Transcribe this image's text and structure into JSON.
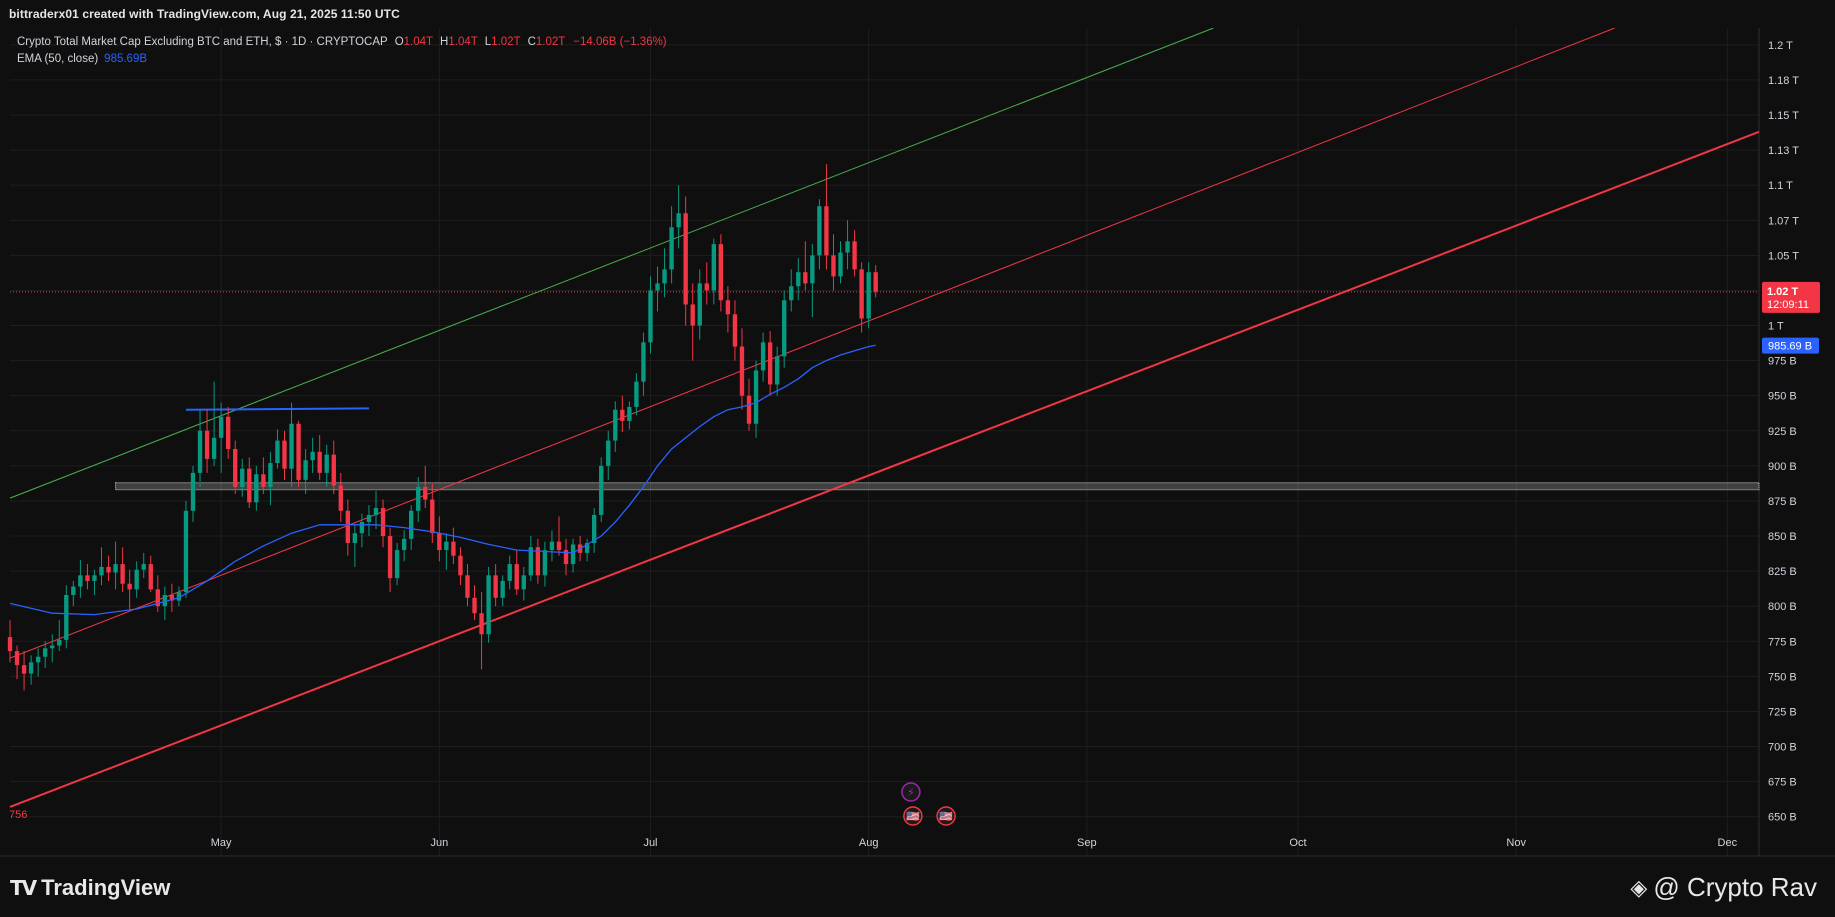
{
  "header": {
    "creator_text": "bittraderx01 created with TradingView.com, Aug 21, 2025 11:50 UTC"
  },
  "legend": {
    "symbol_text": "Crypto Total Market Cap Excluding BTC and ETH, $ · 1D · CRYPTOCAP",
    "open_label": "O",
    "open_value": "1.04T",
    "high_label": "H",
    "high_value": "1.04T",
    "low_label": "L",
    "low_value": "1.02T",
    "close_label": "C",
    "close_value": "1.02T",
    "change_value": "−14.06B (−1.36%)",
    "ema_label": "EMA (50, close)",
    "ema_value": "985.69B"
  },
  "footer": {
    "logo_text": "TradingView",
    "watermark_text": "@ Crypto Rav"
  },
  "colors": {
    "background": "#0f0f0f",
    "up": "#089981",
    "down": "#f23645",
    "ema": "#2962ff",
    "channel_top": "#4caf50",
    "channel_mid": "#f23645",
    "channel_low": "#f23645",
    "resistance": "#2962ff",
    "grid": "#1e1e1e"
  },
  "chart_data": {
    "type": "candlestick",
    "title": "Crypto Total Market Cap Excluding BTC and ETH, $ · 1D · CRYPTOCAP",
    "price_unit": "USD",
    "y_ticks": [
      "650 B",
      "675 B",
      "700 B",
      "725 B",
      "750 B",
      "775 B",
      "800 B",
      "825 B",
      "850 B",
      "875 B",
      "900 B",
      "925 B",
      "950 B",
      "975 B",
      "1 T",
      "1.02 T",
      "1.05 T",
      "1.07 T",
      "1.1 T",
      "1.13 T",
      "1.15 T",
      "1.18 T",
      "1.2 T"
    ],
    "y_tick_values": [
      650,
      675,
      700,
      725,
      750,
      775,
      800,
      825,
      850,
      875,
      900,
      925,
      950,
      975,
      1000,
      1025,
      1050,
      1075,
      1100,
      1125,
      1150,
      1175,
      1200
    ],
    "ylim_billions": [
      622,
      1212
    ],
    "x_ticks": [
      {
        "label": "May",
        "day": 30
      },
      {
        "label": "Jun",
        "day": 61
      },
      {
        "label": "Jul",
        "day": 91
      },
      {
        "label": "Aug",
        "day": 122
      },
      {
        "label": "Sep",
        "day": 153
      },
      {
        "label": "Oct",
        "day": 183
      },
      {
        "label": "Nov",
        "day": 214
      },
      {
        "label": "Dec",
        "day": 244
      }
    ],
    "xlim_days": [
      0,
      248.5
    ],
    "last_price_label": "1.02 T",
    "last_price_value": 1024,
    "countdown_label": "12:09:11",
    "ema_badge_label": "985.69 B",
    "ema_badge_value": 985.69,
    "left_low_label": "756",
    "candles": [
      {
        "day": 0,
        "o": 778,
        "h": 790,
        "l": 760,
        "c": 768
      },
      {
        "day": 1,
        "o": 768,
        "h": 772,
        "l": 748,
        "c": 758
      },
      {
        "day": 2,
        "o": 758,
        "h": 768,
        "l": 740,
        "c": 752
      },
      {
        "day": 3,
        "o": 752,
        "h": 765,
        "l": 744,
        "c": 760
      },
      {
        "day": 4,
        "o": 760,
        "h": 770,
        "l": 750,
        "c": 764
      },
      {
        "day": 5,
        "o": 764,
        "h": 775,
        "l": 756,
        "c": 770
      },
      {
        "day": 6,
        "o": 770,
        "h": 780,
        "l": 760,
        "c": 772
      },
      {
        "day": 7,
        "o": 772,
        "h": 790,
        "l": 768,
        "c": 776
      },
      {
        "day": 8,
        "o": 776,
        "h": 815,
        "l": 770,
        "c": 808
      },
      {
        "day": 9,
        "o": 808,
        "h": 818,
        "l": 800,
        "c": 814
      },
      {
        "day": 10,
        "o": 814,
        "h": 833,
        "l": 806,
        "c": 822
      },
      {
        "day": 11,
        "o": 822,
        "h": 830,
        "l": 812,
        "c": 818
      },
      {
        "day": 12,
        "o": 818,
        "h": 826,
        "l": 808,
        "c": 822
      },
      {
        "day": 13,
        "o": 822,
        "h": 842,
        "l": 815,
        "c": 828
      },
      {
        "day": 14,
        "o": 828,
        "h": 836,
        "l": 818,
        "c": 824
      },
      {
        "day": 15,
        "o": 824,
        "h": 846,
        "l": 812,
        "c": 830
      },
      {
        "day": 16,
        "o": 830,
        "h": 842,
        "l": 810,
        "c": 816
      },
      {
        "day": 17,
        "o": 816,
        "h": 826,
        "l": 798,
        "c": 812
      },
      {
        "day": 18,
        "o": 812,
        "h": 832,
        "l": 806,
        "c": 826
      },
      {
        "day": 19,
        "o": 826,
        "h": 838,
        "l": 820,
        "c": 830
      },
      {
        "day": 20,
        "o": 830,
        "h": 836,
        "l": 810,
        "c": 812
      },
      {
        "day": 21,
        "o": 812,
        "h": 822,
        "l": 796,
        "c": 800
      },
      {
        "day": 22,
        "o": 800,
        "h": 814,
        "l": 790,
        "c": 808
      },
      {
        "day": 23,
        "o": 808,
        "h": 816,
        "l": 796,
        "c": 804
      },
      {
        "day": 24,
        "o": 804,
        "h": 814,
        "l": 800,
        "c": 810
      },
      {
        "day": 25,
        "o": 810,
        "h": 875,
        "l": 806,
        "c": 868
      },
      {
        "day": 26,
        "o": 868,
        "h": 900,
        "l": 860,
        "c": 895
      },
      {
        "day": 27,
        "o": 895,
        "h": 940,
        "l": 885,
        "c": 925
      },
      {
        "day": 28,
        "o": 925,
        "h": 940,
        "l": 895,
        "c": 905
      },
      {
        "day": 29,
        "o": 905,
        "h": 960,
        "l": 900,
        "c": 920
      },
      {
        "day": 30,
        "o": 920,
        "h": 945,
        "l": 895,
        "c": 935
      },
      {
        "day": 31,
        "o": 935,
        "h": 942,
        "l": 905,
        "c": 912
      },
      {
        "day": 32,
        "o": 912,
        "h": 918,
        "l": 880,
        "c": 885
      },
      {
        "day": 33,
        "o": 885,
        "h": 905,
        "l": 878,
        "c": 898
      },
      {
        "day": 34,
        "o": 898,
        "h": 906,
        "l": 870,
        "c": 874
      },
      {
        "day": 35,
        "o": 874,
        "h": 900,
        "l": 868,
        "c": 894
      },
      {
        "day": 36,
        "o": 894,
        "h": 906,
        "l": 880,
        "c": 885
      },
      {
        "day": 37,
        "o": 885,
        "h": 910,
        "l": 872,
        "c": 902
      },
      {
        "day": 38,
        "o": 902,
        "h": 926,
        "l": 898,
        "c": 918
      },
      {
        "day": 39,
        "o": 918,
        "h": 925,
        "l": 890,
        "c": 898
      },
      {
        "day": 40,
        "o": 898,
        "h": 945,
        "l": 885,
        "c": 930
      },
      {
        "day": 41,
        "o": 930,
        "h": 932,
        "l": 885,
        "c": 890
      },
      {
        "day": 42,
        "o": 890,
        "h": 912,
        "l": 880,
        "c": 904
      },
      {
        "day": 43,
        "o": 904,
        "h": 920,
        "l": 895,
        "c": 910
      },
      {
        "day": 44,
        "o": 910,
        "h": 922,
        "l": 890,
        "c": 895
      },
      {
        "day": 45,
        "o": 895,
        "h": 915,
        "l": 885,
        "c": 908
      },
      {
        "day": 46,
        "o": 908,
        "h": 918,
        "l": 880,
        "c": 886
      },
      {
        "day": 47,
        "o": 886,
        "h": 895,
        "l": 860,
        "c": 868
      },
      {
        "day": 48,
        "o": 868,
        "h": 876,
        "l": 836,
        "c": 845
      },
      {
        "day": 49,
        "o": 845,
        "h": 858,
        "l": 828,
        "c": 852
      },
      {
        "day": 50,
        "o": 852,
        "h": 866,
        "l": 842,
        "c": 860
      },
      {
        "day": 51,
        "o": 860,
        "h": 872,
        "l": 850,
        "c": 865
      },
      {
        "day": 52,
        "o": 865,
        "h": 882,
        "l": 855,
        "c": 870
      },
      {
        "day": 53,
        "o": 870,
        "h": 876,
        "l": 842,
        "c": 850
      },
      {
        "day": 54,
        "o": 850,
        "h": 856,
        "l": 810,
        "c": 820
      },
      {
        "day": 55,
        "o": 820,
        "h": 845,
        "l": 815,
        "c": 840
      },
      {
        "day": 56,
        "o": 840,
        "h": 854,
        "l": 832,
        "c": 848
      },
      {
        "day": 57,
        "o": 848,
        "h": 872,
        "l": 840,
        "c": 868
      },
      {
        "day": 58,
        "o": 868,
        "h": 892,
        "l": 860,
        "c": 885
      },
      {
        "day": 59,
        "o": 885,
        "h": 900,
        "l": 870,
        "c": 876
      },
      {
        "day": 60,
        "o": 876,
        "h": 888,
        "l": 845,
        "c": 852
      },
      {
        "day": 61,
        "o": 852,
        "h": 864,
        "l": 832,
        "c": 840
      },
      {
        "day": 62,
        "o": 840,
        "h": 852,
        "l": 826,
        "c": 846
      },
      {
        "day": 63,
        "o": 846,
        "h": 856,
        "l": 830,
        "c": 836
      },
      {
        "day": 64,
        "o": 836,
        "h": 842,
        "l": 815,
        "c": 822
      },
      {
        "day": 65,
        "o": 822,
        "h": 830,
        "l": 800,
        "c": 806
      },
      {
        "day": 66,
        "o": 806,
        "h": 815,
        "l": 790,
        "c": 795
      },
      {
        "day": 67,
        "o": 795,
        "h": 810,
        "l": 755,
        "c": 780
      },
      {
        "day": 68,
        "o": 780,
        "h": 828,
        "l": 774,
        "c": 822
      },
      {
        "day": 69,
        "o": 822,
        "h": 830,
        "l": 800,
        "c": 806
      },
      {
        "day": 70,
        "o": 806,
        "h": 822,
        "l": 800,
        "c": 818
      },
      {
        "day": 71,
        "o": 818,
        "h": 836,
        "l": 812,
        "c": 830
      },
      {
        "day": 72,
        "o": 830,
        "h": 840,
        "l": 808,
        "c": 812
      },
      {
        "day": 73,
        "o": 812,
        "h": 828,
        "l": 804,
        "c": 822
      },
      {
        "day": 74,
        "o": 822,
        "h": 850,
        "l": 818,
        "c": 842
      },
      {
        "day": 75,
        "o": 842,
        "h": 848,
        "l": 816,
        "c": 822
      },
      {
        "day": 76,
        "o": 822,
        "h": 846,
        "l": 814,
        "c": 840
      },
      {
        "day": 77,
        "o": 840,
        "h": 854,
        "l": 832,
        "c": 846
      },
      {
        "day": 78,
        "o": 846,
        "h": 864,
        "l": 836,
        "c": 840
      },
      {
        "day": 79,
        "o": 840,
        "h": 848,
        "l": 822,
        "c": 830
      },
      {
        "day": 80,
        "o": 830,
        "h": 848,
        "l": 824,
        "c": 844
      },
      {
        "day": 81,
        "o": 844,
        "h": 850,
        "l": 832,
        "c": 838
      },
      {
        "day": 82,
        "o": 838,
        "h": 848,
        "l": 832,
        "c": 845
      },
      {
        "day": 83,
        "o": 845,
        "h": 870,
        "l": 838,
        "c": 865
      },
      {
        "day": 84,
        "o": 865,
        "h": 906,
        "l": 860,
        "c": 900
      },
      {
        "day": 85,
        "o": 900,
        "h": 925,
        "l": 890,
        "c": 918
      },
      {
        "day": 86,
        "o": 918,
        "h": 946,
        "l": 910,
        "c": 940
      },
      {
        "day": 87,
        "o": 940,
        "h": 950,
        "l": 924,
        "c": 932
      },
      {
        "day": 88,
        "o": 932,
        "h": 946,
        "l": 926,
        "c": 942
      },
      {
        "day": 89,
        "o": 942,
        "h": 966,
        "l": 936,
        "c": 960
      },
      {
        "day": 90,
        "o": 960,
        "h": 995,
        "l": 950,
        "c": 988
      },
      {
        "day": 91,
        "o": 988,
        "h": 1035,
        "l": 980,
        "c": 1025
      },
      {
        "day": 92,
        "o": 1025,
        "h": 1042,
        "l": 1010,
        "c": 1030
      },
      {
        "day": 93,
        "o": 1030,
        "h": 1055,
        "l": 1020,
        "c": 1040
      },
      {
        "day": 94,
        "o": 1040,
        "h": 1085,
        "l": 1030,
        "c": 1070
      },
      {
        "day": 95,
        "o": 1070,
        "h": 1100,
        "l": 1055,
        "c": 1080
      },
      {
        "day": 96,
        "o": 1080,
        "h": 1092,
        "l": 1000,
        "c": 1015
      },
      {
        "day": 97,
        "o": 1015,
        "h": 1030,
        "l": 975,
        "c": 1000
      },
      {
        "day": 98,
        "o": 1000,
        "h": 1040,
        "l": 990,
        "c": 1030
      },
      {
        "day": 99,
        "o": 1030,
        "h": 1045,
        "l": 1015,
        "c": 1025
      },
      {
        "day": 100,
        "o": 1025,
        "h": 1062,
        "l": 1015,
        "c": 1058
      },
      {
        "day": 101,
        "o": 1058,
        "h": 1065,
        "l": 1010,
        "c": 1018
      },
      {
        "day": 102,
        "o": 1018,
        "h": 1028,
        "l": 995,
        "c": 1008
      },
      {
        "day": 103,
        "o": 1008,
        "h": 1018,
        "l": 975,
        "c": 985
      },
      {
        "day": 104,
        "o": 985,
        "h": 998,
        "l": 940,
        "c": 950
      },
      {
        "day": 105,
        "o": 950,
        "h": 962,
        "l": 925,
        "c": 930
      },
      {
        "day": 106,
        "o": 930,
        "h": 975,
        "l": 920,
        "c": 968
      },
      {
        "day": 107,
        "o": 968,
        "h": 995,
        "l": 960,
        "c": 988
      },
      {
        "day": 108,
        "o": 988,
        "h": 996,
        "l": 950,
        "c": 958
      },
      {
        "day": 109,
        "o": 958,
        "h": 985,
        "l": 950,
        "c": 978
      },
      {
        "day": 110,
        "o": 978,
        "h": 1025,
        "l": 970,
        "c": 1018
      },
      {
        "day": 111,
        "o": 1018,
        "h": 1040,
        "l": 1010,
        "c": 1028
      },
      {
        "day": 112,
        "o": 1028,
        "h": 1048,
        "l": 1018,
        "c": 1038
      },
      {
        "day": 113,
        "o": 1038,
        "h": 1060,
        "l": 1025,
        "c": 1030
      },
      {
        "day": 114,
        "o": 1030,
        "h": 1058,
        "l": 1006,
        "c": 1050
      },
      {
        "day": 115,
        "o": 1050,
        "h": 1090,
        "l": 1040,
        "c": 1085
      },
      {
        "day": 116,
        "o": 1085,
        "h": 1115,
        "l": 1040,
        "c": 1050
      },
      {
        "day": 117,
        "o": 1050,
        "h": 1065,
        "l": 1025,
        "c": 1035
      },
      {
        "day": 118,
        "o": 1035,
        "h": 1060,
        "l": 1030,
        "c": 1052
      },
      {
        "day": 119,
        "o": 1052,
        "h": 1075,
        "l": 1040,
        "c": 1060
      },
      {
        "day": 120,
        "o": 1060,
        "h": 1068,
        "l": 1035,
        "c": 1040
      },
      {
        "day": 121,
        "o": 1040,
        "h": 1045,
        "l": 995,
        "c": 1005
      },
      {
        "day": 122,
        "o": 1005,
        "h": 1045,
        "l": 998,
        "c": 1038
      },
      {
        "day": 123,
        "o": 1038,
        "h": 1043,
        "l": 1020,
        "c": 1024
      }
    ],
    "ema": [
      {
        "day": 0,
        "v": 802
      },
      {
        "day": 6,
        "v": 795
      },
      {
        "day": 12,
        "v": 794
      },
      {
        "day": 18,
        "v": 798
      },
      {
        "day": 24,
        "v": 806
      },
      {
        "day": 28,
        "v": 818
      },
      {
        "day": 32,
        "v": 832
      },
      {
        "day": 36,
        "v": 843
      },
      {
        "day": 40,
        "v": 852
      },
      {
        "day": 44,
        "v": 858
      },
      {
        "day": 48,
        "v": 858
      },
      {
        "day": 52,
        "v": 858
      },
      {
        "day": 56,
        "v": 856
      },
      {
        "day": 60,
        "v": 853
      },
      {
        "day": 64,
        "v": 849
      },
      {
        "day": 68,
        "v": 844
      },
      {
        "day": 72,
        "v": 840
      },
      {
        "day": 76,
        "v": 839
      },
      {
        "day": 80,
        "v": 838
      },
      {
        "day": 84,
        "v": 850
      },
      {
        "day": 86,
        "v": 860
      },
      {
        "day": 88,
        "v": 872
      },
      {
        "day": 90,
        "v": 885
      },
      {
        "day": 92,
        "v": 900
      },
      {
        "day": 94,
        "v": 912
      },
      {
        "day": 96,
        "v": 920
      },
      {
        "day": 98,
        "v": 928
      },
      {
        "day": 100,
        "v": 935
      },
      {
        "day": 102,
        "v": 940
      },
      {
        "day": 104,
        "v": 942
      },
      {
        "day": 106,
        "v": 945
      },
      {
        "day": 108,
        "v": 951
      },
      {
        "day": 110,
        "v": 956
      },
      {
        "day": 112,
        "v": 962
      },
      {
        "day": 114,
        "v": 970
      },
      {
        "day": 116,
        "v": 975
      },
      {
        "day": 118,
        "v": 979
      },
      {
        "day": 120,
        "v": 982
      },
      {
        "day": 122,
        "v": 985
      },
      {
        "day": 123,
        "v": 986
      }
    ],
    "trendlines": [
      {
        "name": "upper-channel-line",
        "color": "#4caf50",
        "width": 1,
        "p1": {
          "day": 0,
          "v": 877
        },
        "p2": {
          "day": 171,
          "v": 1212
        }
      },
      {
        "name": "middle-channel-line",
        "color": "#f23645",
        "width": 1,
        "p1": {
          "day": 0,
          "v": 763
        },
        "p2": {
          "day": 228,
          "v": 1212
        }
      },
      {
        "name": "lower-channel-line",
        "color": "#f23645",
        "width": 2,
        "p1": {
          "day": 0,
          "v": 657
        },
        "p2": {
          "day": 248.5,
          "v": 1138
        }
      },
      {
        "name": "resistance-line",
        "color": "#2962ff",
        "width": 2,
        "p1": {
          "day": 25,
          "v": 940
        },
        "p2": {
          "day": 51,
          "v": 941
        }
      }
    ],
    "support_zone": {
      "day_start": 15,
      "day_end": 248.5,
      "v_low": 883,
      "v_high": 888
    },
    "event_markers": [
      {
        "name": "lightning-event-icon",
        "day": 128,
        "glyph": "⚡",
        "color": "#9c27b0"
      },
      {
        "name": "us-flag-event-icon",
        "day": 128,
        "glyph": "🇺🇸",
        "color": "#f23645"
      },
      {
        "name": "us-flag-event-icon",
        "day": 133,
        "glyph": "🇺🇸",
        "color": "#f23645"
      }
    ]
  }
}
